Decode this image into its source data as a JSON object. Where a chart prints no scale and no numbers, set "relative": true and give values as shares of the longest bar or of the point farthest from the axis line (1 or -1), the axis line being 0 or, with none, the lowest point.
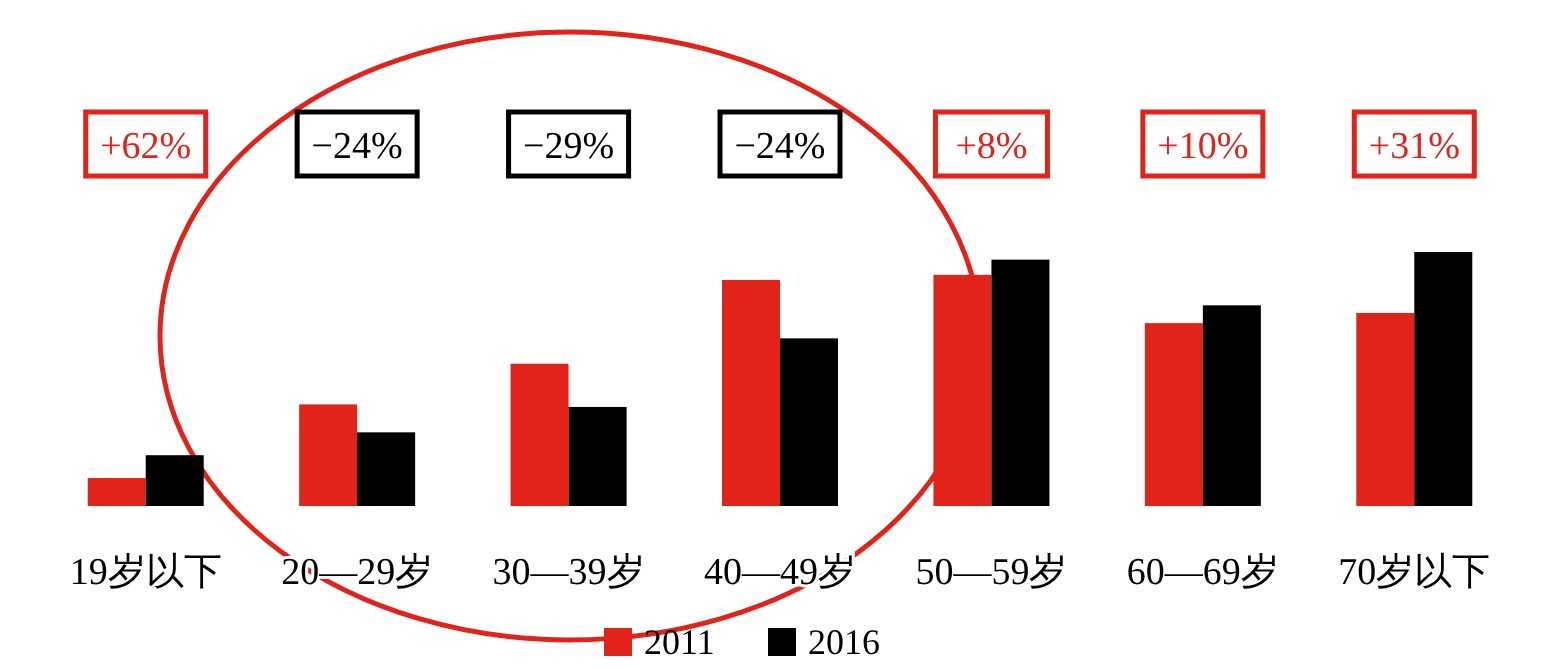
{
  "chart_data": {
    "type": "bar",
    "relative": true,
    "categories": [
      "19岁以下",
      "20—29岁",
      "30—39岁",
      "40—49岁",
      "50—59岁",
      "60—69岁",
      "70岁以下"
    ],
    "series": [
      {
        "name": "2011",
        "color": "#e2231a",
        "values": [
          0.11,
          0.4,
          0.56,
          0.89,
          0.91,
          0.72,
          0.76
        ]
      },
      {
        "name": "2016",
        "color": "#000000",
        "values": [
          0.2,
          0.29,
          0.39,
          0.66,
          0.97,
          0.79,
          1
        ]
      }
    ],
    "annotations": [
      "+62%",
      "−24%",
      "−29%",
      "−24%",
      "+8%",
      "+10%",
      "+31%"
    ],
    "legend": "bottom"
  }
}
